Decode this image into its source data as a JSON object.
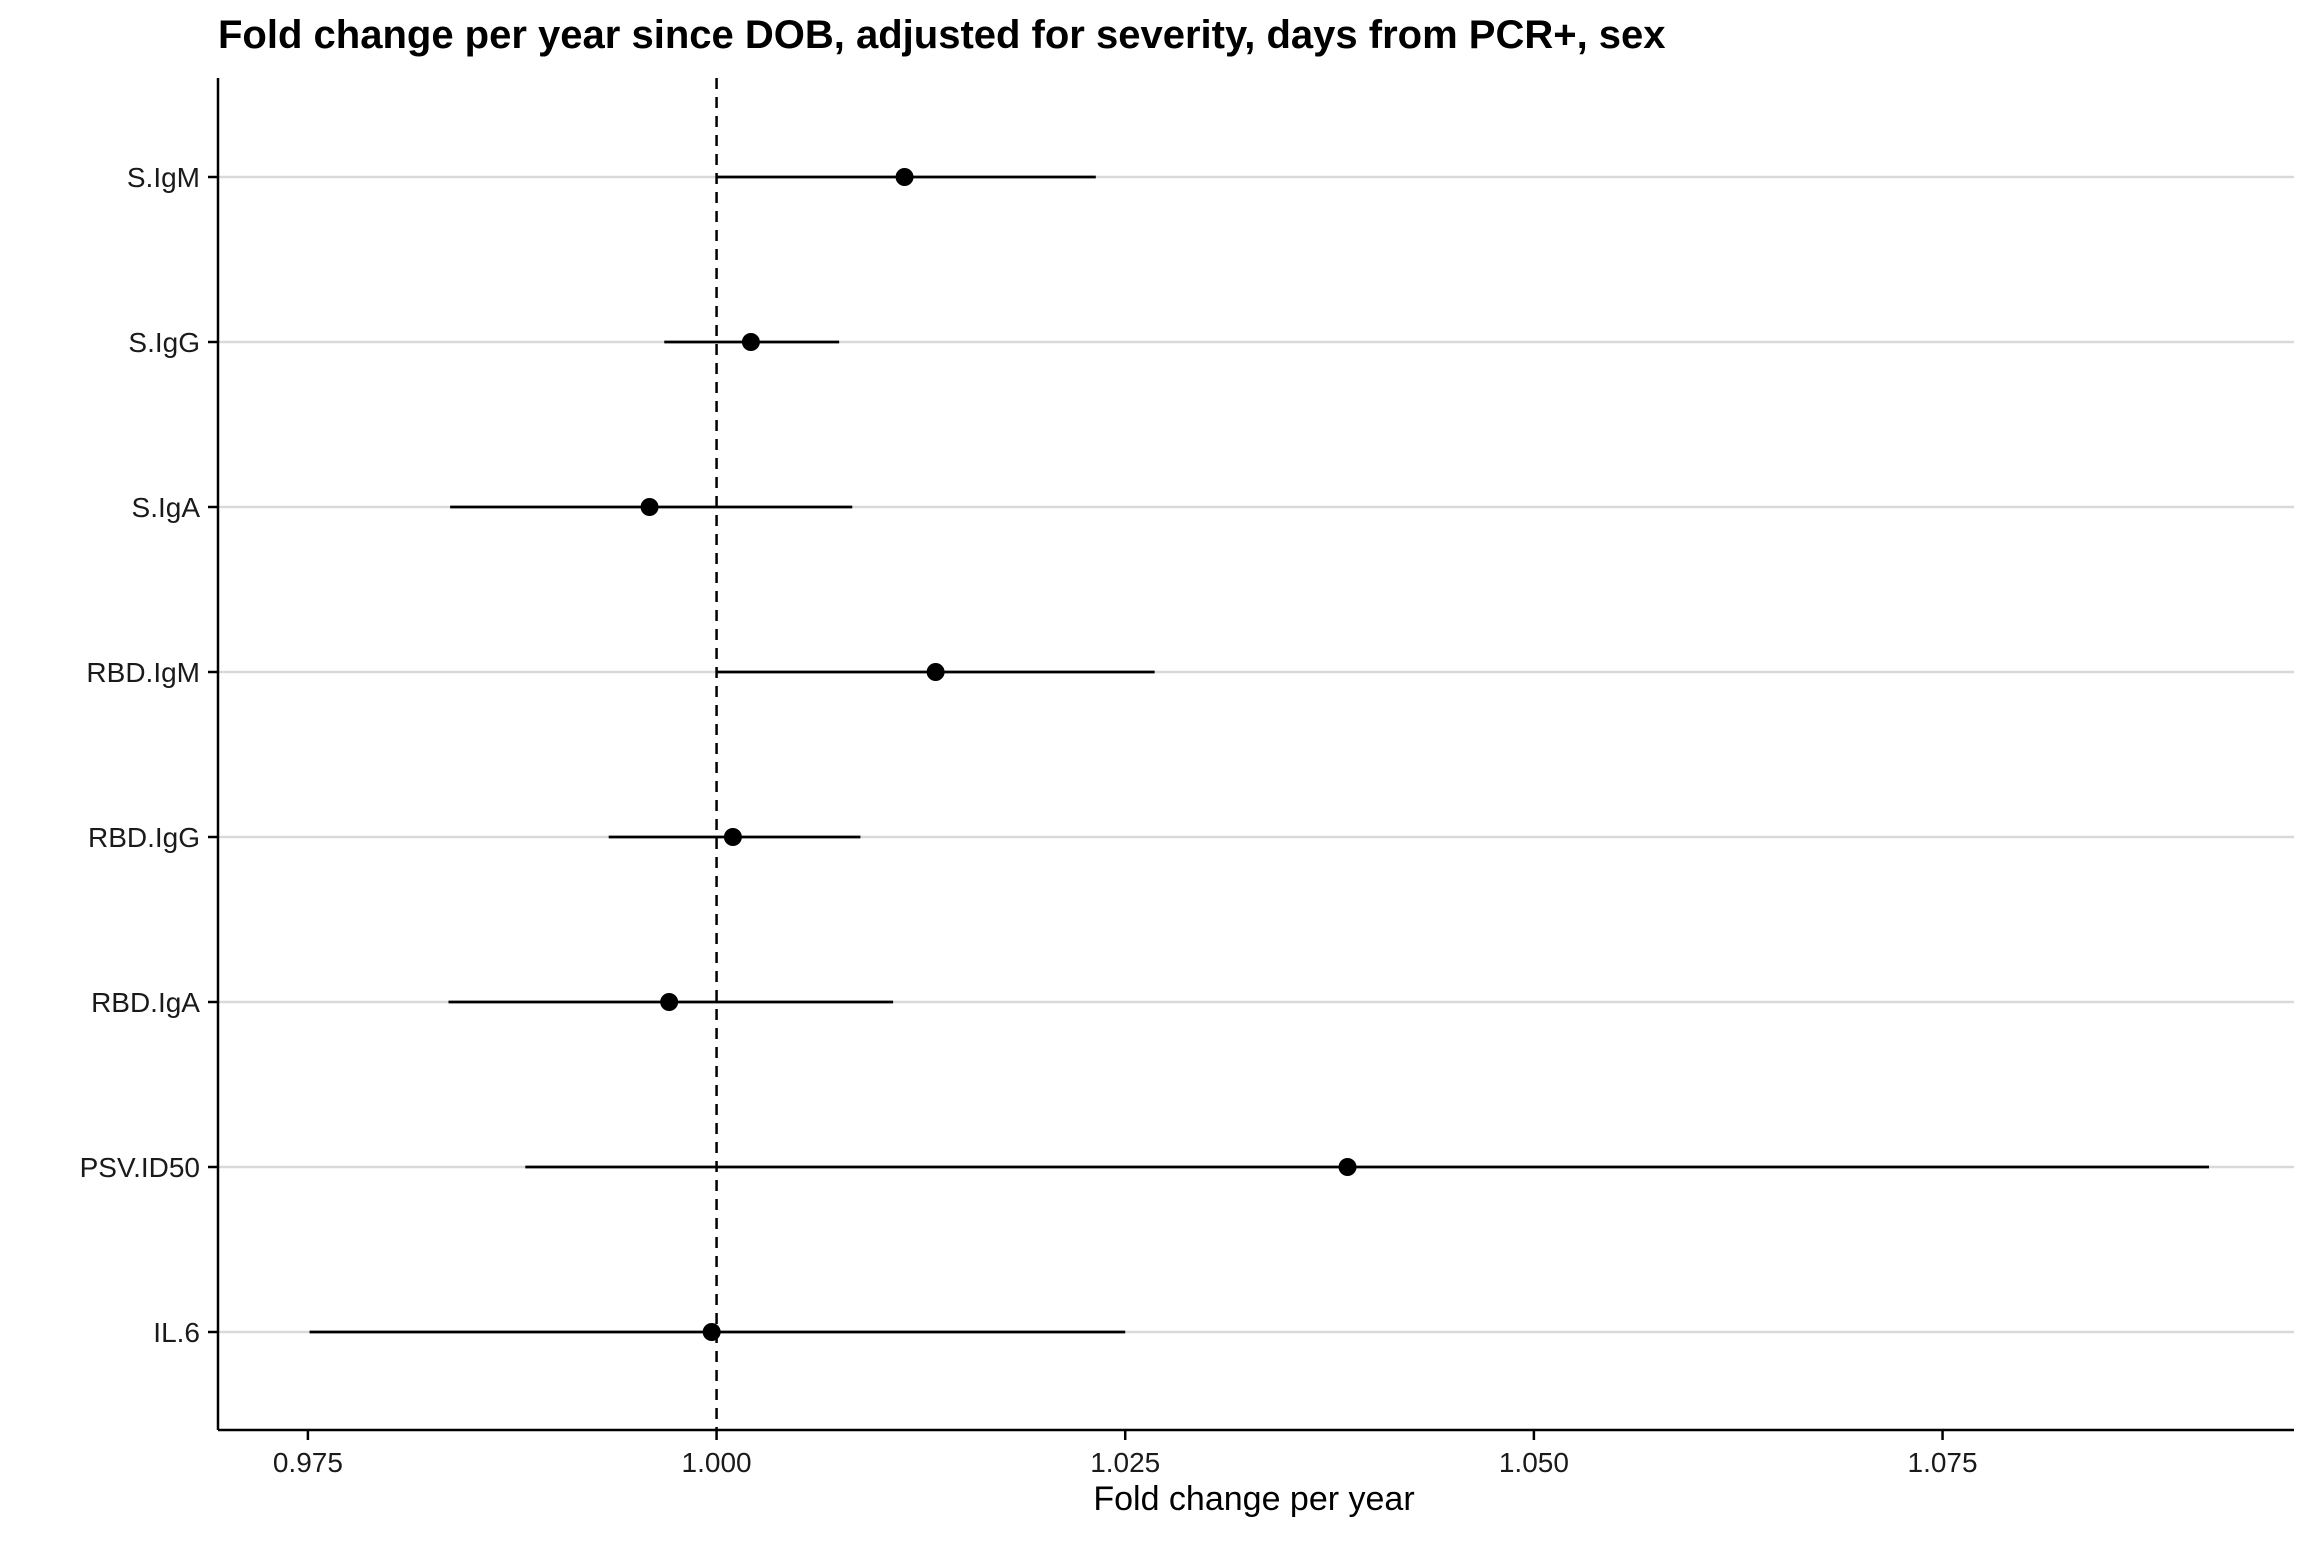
{
  "chart_data": {
    "type": "forest",
    "title": "Fold change per year since DOB, adjusted for severity, days from PCR+, sex",
    "xlabel": "Fold change per year",
    "ylabel": "",
    "xlim": [
      0.9695,
      1.0965
    ],
    "xticks": [
      0.975,
      1.0,
      1.025,
      1.05,
      1.075
    ],
    "xtick_labels": [
      "0.975",
      "1.000",
      "1.025",
      "1.050",
      "1.075"
    ],
    "reference_line": 1.0,
    "grid": "horizontal",
    "categories": [
      "S.IgM",
      "S.IgG",
      "S.IgA",
      "RBD.IgM",
      "RBD.IgG",
      "RBD.IgA",
      "PSV.ID50",
      "IL.6"
    ],
    "estimates": [
      1.0115,
      1.0021,
      0.9959,
      1.0134,
      1.001,
      0.9971,
      1.0386,
      0.9997
    ],
    "lower": [
      1.0,
      0.9968,
      0.9837,
      1.0,
      0.9934,
      0.9836,
      0.9883,
      0.9751
    ],
    "upper": [
      1.0232,
      1.0075,
      1.0083,
      1.0268,
      1.0088,
      1.0108,
      1.0913,
      1.025
    ]
  },
  "colors": {
    "point": "#000000",
    "gridline": "#d9d9d9",
    "axis": "#000000"
  }
}
